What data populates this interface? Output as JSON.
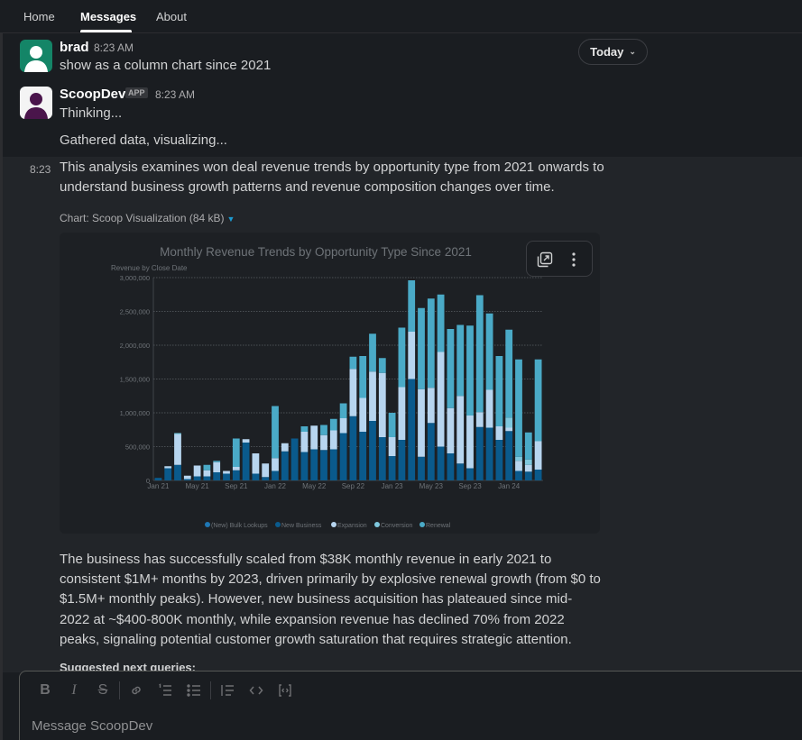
{
  "nav": {
    "tabs": [
      "Home",
      "Messages",
      "About"
    ]
  },
  "today_pill": "Today",
  "messages": {
    "brad": {
      "author": "brad",
      "time": "8:23 AM",
      "text": "show as a column chart since 2021"
    },
    "bot": {
      "author": "ScoopDev",
      "badge": "APP",
      "time": "8:23 AM",
      "line1": "Thinking...",
      "line2": "Gathered data, visualizing..."
    },
    "analysis": {
      "time": "8:23",
      "intro": "This analysis examines won deal revenue trends by opportunity type from 2021 onwards to understand business growth patterns and revenue composition changes over time.",
      "attachment": "Chart: Scoop Visualization (84 kB)",
      "summary": "The business has successfully scaled from $38K monthly revenue in early 2021 to consistent $1M+ months by 2023, driven primarily by explosive renewal growth (from $0 to $1.5M+ monthly peaks). However, new business acquisition has plateaued since mid-2022 at ~$400-800K monthly, while expansion revenue has declined 70% from 2022 peaks, signaling potential customer growth saturation that requires strategic attention.",
      "suggested": "Suggested next queries:"
    }
  },
  "composer": {
    "placeholder": "Message ScoopDev"
  },
  "colors": {
    "bulk": "#1f77b4",
    "new_business": "#0a5a8c",
    "expansion": "#b7d5ef",
    "conversion": "#7fc8de",
    "renewal": "#4aaac7"
  },
  "chart_data": {
    "type": "bar",
    "stacked": true,
    "title": "Monthly Revenue Trends by Opportunity Type Since 2021",
    "ylabel": "Revenue by Close Date",
    "ylim": [
      0,
      3000000
    ],
    "yticks": [
      "0",
      "500,000",
      "1,000,000",
      "1,500,000",
      "2,000,000",
      "2,500,000",
      "3,000,000"
    ],
    "xtick_labels": [
      "Jan 21",
      "May 21",
      "Sep 21",
      "Jan 22",
      "May 22",
      "Sep 22",
      "Jan 23",
      "May 23",
      "Sep 23",
      "Jan 24"
    ],
    "xtick_index": [
      0,
      4,
      8,
      12,
      16,
      20,
      24,
      28,
      32,
      36
    ],
    "categories": [
      "Jan 21",
      "Feb 21",
      "Mar 21",
      "Apr 21",
      "May 21",
      "Jun 21",
      "Jul 21",
      "Aug 21",
      "Sep 21",
      "Oct 21",
      "Nov 21",
      "Dec 21",
      "Jan 22",
      "Feb 22",
      "Mar 22",
      "Apr 22",
      "May 22",
      "Jun 22",
      "Jul 22",
      "Aug 22",
      "Sep 22",
      "Oct 22",
      "Nov 22",
      "Dec 22",
      "Jan 23",
      "Feb 23",
      "Mar 23",
      "Apr 23",
      "May 23",
      "Jun 23",
      "Jul 23",
      "Aug 23",
      "Sep 23",
      "Oct 23",
      "Nov 23",
      "Dec 23",
      "Jan 24",
      "Feb 24",
      "Mar 24",
      "Apr 24"
    ],
    "legend": [
      "(New) Bulk Lookups",
      "New Business",
      "Expansion",
      "Conversion",
      "Renewal"
    ],
    "legend_position": "bottom",
    "series": [
      {
        "name": "(New) Bulk Lookups",
        "values": [
          0,
          0,
          0,
          0,
          0,
          0,
          0,
          0,
          0,
          0,
          0,
          0,
          0,
          0,
          0,
          0,
          0,
          0,
          0,
          0,
          0,
          0,
          0,
          0,
          0,
          0,
          0,
          0,
          0,
          0,
          0,
          0,
          0,
          0,
          0,
          0,
          0,
          0,
          0,
          0
        ]
      },
      {
        "name": "New Business",
        "values": [
          38000,
          180000,
          230000,
          20000,
          60000,
          60000,
          120000,
          100000,
          150000,
          560000,
          100000,
          50000,
          140000,
          430000,
          620000,
          420000,
          460000,
          450000,
          460000,
          700000,
          950000,
          720000,
          880000,
          640000,
          360000,
          600000,
          1500000,
          350000,
          850000,
          500000,
          400000,
          250000,
          180000,
          790000,
          780000,
          600000,
          730000,
          140000,
          130000,
          160000
        ]
      },
      {
        "name": "Expansion",
        "values": [
          0,
          30000,
          450000,
          50000,
          160000,
          90000,
          150000,
          40000,
          50000,
          50000,
          300000,
          200000,
          190000,
          120000,
          0,
          300000,
          350000,
          220000,
          280000,
          220000,
          700000,
          500000,
          730000,
          950000,
          280000,
          780000,
          700000,
          1000000,
          520000,
          1400000,
          670000,
          1000000,
          780000,
          220000,
          560000,
          200000,
          50000,
          150000,
          100000,
          420000
        ]
      },
      {
        "name": "Conversion",
        "values": [
          0,
          0,
          20000,
          0,
          0,
          0,
          0,
          0,
          0,
          0,
          0,
          0,
          0,
          0,
          0,
          0,
          0,
          0,
          0,
          0,
          0,
          0,
          0,
          0,
          0,
          0,
          0,
          0,
          0,
          0,
          0,
          0,
          0,
          0,
          0,
          0,
          150000,
          60000,
          80000,
          0
        ]
      },
      {
        "name": "Renewal",
        "values": [
          0,
          0,
          0,
          0,
          0,
          80000,
          20000,
          0,
          420000,
          0,
          0,
          0,
          770000,
          0,
          0,
          80000,
          0,
          150000,
          170000,
          220000,
          180000,
          620000,
          560000,
          220000,
          360000,
          880000,
          760000,
          1200000,
          1320000,
          850000,
          1170000,
          1050000,
          1330000,
          1730000,
          1130000,
          1040000,
          1300000,
          1440000,
          400000,
          1210000
        ]
      }
    ]
  }
}
